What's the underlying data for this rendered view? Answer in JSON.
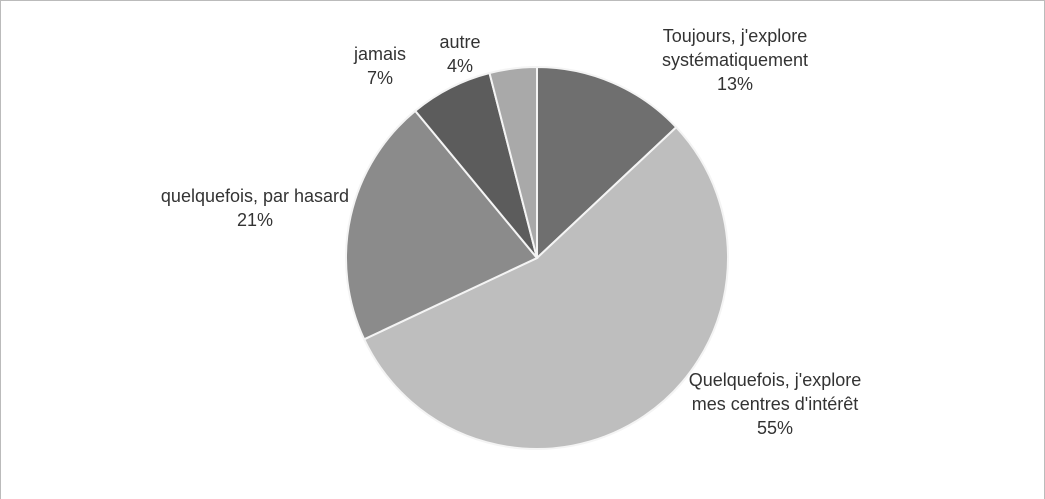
{
  "chart_data": {
    "type": "pie",
    "categories": [
      "Toujours, j'explore systématiquement",
      "Quelquefois, j'explore mes centres d'intérêt",
      "quelquefois, par hasard",
      "jamais",
      "autre"
    ],
    "values": [
      13,
      55,
      21,
      7,
      4
    ],
    "value_labels": [
      "13%",
      "55%",
      "21%",
      "7%",
      "4%"
    ],
    "colors": [
      "#6f6f6f",
      "#bebebe",
      "#8b8b8b",
      "#5c5c5c",
      "#a9a9a9"
    ]
  }
}
